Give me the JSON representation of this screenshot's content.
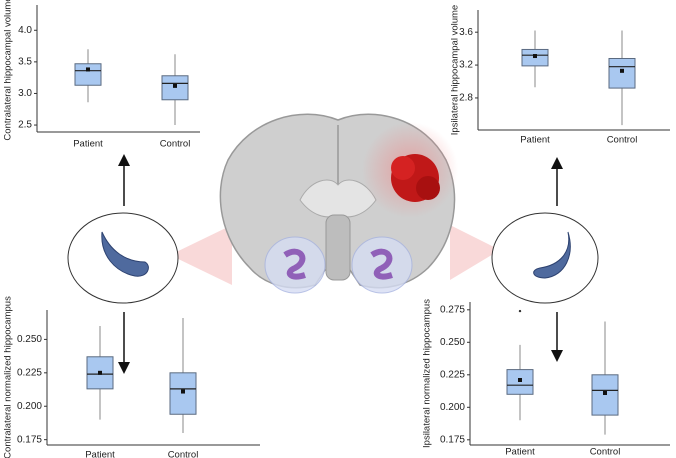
{
  "chart_data": [
    {
      "type": "box",
      "ylabel": "Contralateral hippocampal volume",
      "categories": [
        "Patient",
        "Control"
      ],
      "color": "#a9c8f0",
      "boxes": [
        {
          "whislo": 2.86,
          "q1": 3.13,
          "med": 3.36,
          "q3": 3.47,
          "whishi": 3.7,
          "mean": 3.38
        },
        {
          "whislo": 2.5,
          "q1": 2.9,
          "med": 3.16,
          "q3": 3.28,
          "whishi": 3.62,
          "mean": 3.12
        }
      ],
      "ylim": [
        2.39,
        4.4
      ],
      "yticks": [
        2.5,
        {
          "value": 3,
          "label": "3.0"
        },
        3.5,
        {
          "value": 4,
          "label": "4.0"
        }
      ]
    },
    {
      "type": "box",
      "ylabel": "Ipsilateral hippocampal volume",
      "categories": [
        "Patient",
        "Control"
      ],
      "color": "#a9c8f0",
      "boxes": [
        {
          "whislo": 2.93,
          "q1": 3.19,
          "med": 3.32,
          "q3": 3.39,
          "whishi": 3.62,
          "mean": 3.31
        },
        {
          "whislo": 2.47,
          "q1": 2.92,
          "med": 3.18,
          "q3": 3.28,
          "whishi": 3.62,
          "mean": 3.13
        }
      ],
      "ylim": [
        2.41,
        3.87
      ],
      "yticks": [
        2.8,
        3.2,
        3.6
      ]
    },
    {
      "type": "box",
      "ylabel": "Contralateral normalized hippocampus",
      "categories": [
        "Patient",
        "Control"
      ],
      "color": "#a9c8f0",
      "boxes": [
        {
          "whislo": 0.19,
          "q1": 0.213,
          "med": 0.224,
          "q3": 0.237,
          "whishi": 0.26,
          "mean": 0.225
        },
        {
          "whislo": 0.18,
          "q1": 0.194,
          "med": 0.213,
          "q3": 0.225,
          "whishi": 0.266,
          "mean": 0.211
        }
      ],
      "ylim": [
        0.171,
        0.272
      ],
      "yticks": [
        0.175,
        {
          "value": 0.2,
          "label": "0.200"
        },
        0.225,
        {
          "value": 0.25,
          "label": "0.250"
        }
      ]
    },
    {
      "type": "box",
      "ylabel": "Ipsilateral normalized hippocampus",
      "categories": [
        "Patient",
        "Control"
      ],
      "color": "#a9c8f0",
      "boxes": [
        {
          "whislo": 0.19,
          "q1": 0.21,
          "med": 0.217,
          "q3": 0.229,
          "whishi": 0.248,
          "mean": 0.221,
          "outliers": [
            0.274
          ]
        },
        {
          "whislo": 0.179,
          "q1": 0.194,
          "med": 0.213,
          "q3": 0.225,
          "whishi": 0.266,
          "mean": 0.211
        }
      ],
      "ylim": [
        0.171,
        0.281
      ],
      "yticks": [
        0.175,
        {
          "value": 0.2,
          "label": "0.200"
        },
        0.225,
        {
          "value": 0.25,
          "label": "0.250"
        },
        0.275
      ]
    }
  ]
}
